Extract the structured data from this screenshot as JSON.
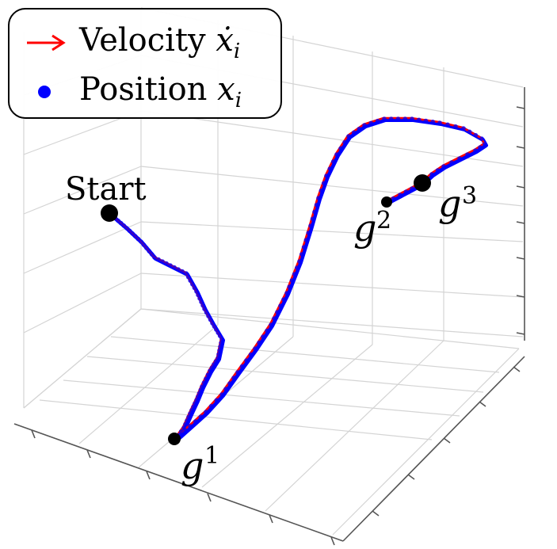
{
  "chart_data": {
    "type": "line",
    "projection": "3d",
    "series": [
      {
        "name": "Velocity",
        "symbol": "ẋ_i",
        "marker": "arrow",
        "color": "#ff0000"
      },
      {
        "name": "Position",
        "symbol": "x_i",
        "marker": "dot",
        "color": "#0000ff"
      }
    ],
    "annotations": [
      {
        "label": "Start",
        "marker": "point"
      },
      {
        "label": "g",
        "superscript": "1",
        "marker": "point"
      },
      {
        "label": "g",
        "superscript": "2",
        "marker": "point"
      },
      {
        "label": "g",
        "superscript": "3",
        "marker": "point"
      }
    ],
    "grid": true,
    "tick_labels_visible": false,
    "legend_placement": "top-left"
  },
  "legend": {
    "velocity_label": "Velocity",
    "velocity_symbol": "ẋ",
    "velocity_sub": "i",
    "position_label": "Position",
    "position_symbol": "x",
    "position_sub": "i"
  }
}
